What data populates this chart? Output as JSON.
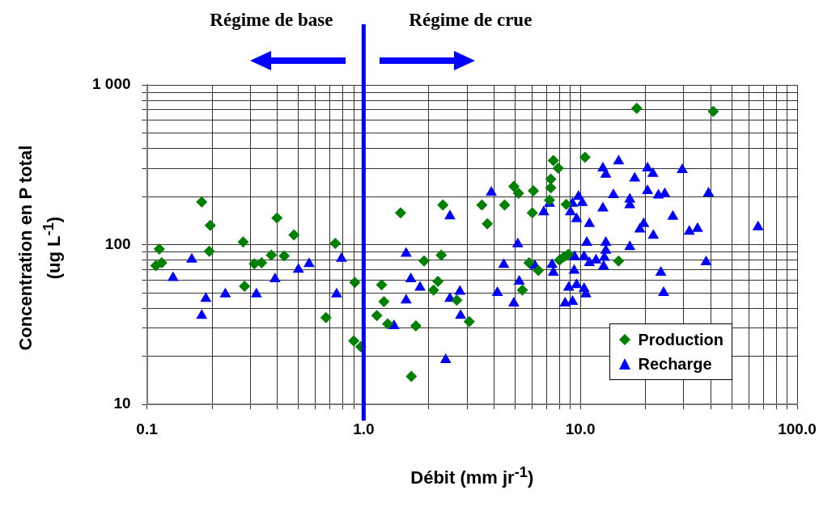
{
  "chart_data": {
    "type": "scatter",
    "xlabel": "Débit (mm jr$^{-1}$)",
    "ylabel": "Concentration en P total\n(ug L$^{-1}$)",
    "annotations": [
      "Régime de base",
      "Régime de crue"
    ],
    "log": "xy",
    "grid": true,
    "legend": "bottom right",
    "xlim": [
      0.1,
      100
    ],
    "ylim": [
      10,
      1000
    ],
    "xticks": [
      {
        "value": 0.1,
        "label": "0.1"
      },
      {
        "value": 0.2,
        "label": null
      },
      {
        "value": 0.3,
        "label": null
      },
      {
        "value": 0.4,
        "label": null
      },
      {
        "value": 0.5,
        "label": null
      },
      {
        "value": 0.6,
        "label": null
      },
      {
        "value": 0.7,
        "label": null
      },
      {
        "value": 0.8,
        "label": null
      },
      {
        "value": 0.9,
        "label": null
      },
      {
        "value": 1,
        "label": "1.0"
      },
      {
        "value": 2,
        "label": null
      },
      {
        "value": 3,
        "label": null
      },
      {
        "value": 4,
        "label": null
      },
      {
        "value": 5,
        "label": null
      },
      {
        "value": 6,
        "label": null
      },
      {
        "value": 7,
        "label": null
      },
      {
        "value": 8,
        "label": null
      },
      {
        "value": 9,
        "label": null
      },
      {
        "value": 10,
        "label": "10.0"
      },
      {
        "value": 20,
        "label": null
      },
      {
        "value": 30,
        "label": null
      },
      {
        "value": 40,
        "label": null
      },
      {
        "value": 50,
        "label": null
      },
      {
        "value": 60,
        "label": null
      },
      {
        "value": 70,
        "label": null
      },
      {
        "value": 80,
        "label": null
      },
      {
        "value": 90,
        "label": null
      },
      {
        "value": 100,
        "label": "100.0"
      }
    ],
    "yticks": [
      10,
      {
        "value": 20,
        "label": null
      },
      {
        "value": 30,
        "label": null
      },
      {
        "value": 40,
        "label": null
      },
      {
        "value": 50,
        "label": null
      },
      {
        "value": 60,
        "label": null
      },
      {
        "value": 70,
        "label": null
      },
      {
        "value": 80,
        "label": null
      },
      {
        "value": 90,
        "label": null
      },
      100,
      {
        "value": 200,
        "label": null
      },
      {
        "value": 300,
        "label": null
      },
      {
        "value": 400,
        "label": null
      },
      {
        "value": 500,
        "label": null
      },
      {
        "value": 600,
        "label": null
      },
      {
        "value": 700,
        "label": null
      },
      {
        "value": 800,
        "label": null
      },
      {
        "value": 900,
        "label": null
      },
      {
        "value": 1000,
        "label": "1 000"
      }
    ],
    "ref_lines": [
      {
        "axis": "x",
        "value": 1,
        "color": "#0000ff"
      }
    ],
    "series": [
      {
        "name": "Production",
        "color": "#008000",
        "marker": "diamond",
        "x": [
          0.11,
          0.114,
          0.117,
          0.179,
          0.196,
          0.194,
          0.278,
          0.282,
          0.313,
          0.338,
          0.375,
          0.398,
          0.43,
          0.477,
          0.67,
          0.74,
          0.91,
          0.9,
          0.97,
          1.21,
          1.24,
          1.15,
          1.29,
          1.48,
          1.74,
          1.66,
          1.9,
          2.28,
          2.2,
          2.1,
          2.32,
          2.69,
          3.07,
          3.51,
          3.72,
          4.47,
          4.93,
          5.18,
          6.07,
          6.0,
          7.3,
          7.3,
          7.2,
          8.6,
          5.4,
          5.8,
          6.4,
          8.0,
          8.4,
          8.8,
          18.2,
          41,
          7.5,
          7.9,
          10.5,
          15
        ],
        "values": [
          74,
          94,
          77,
          185,
          132,
          91,
          104,
          55,
          76,
          77,
          86,
          147,
          85,
          115,
          35,
          102,
          58,
          25,
          23,
          56,
          44,
          36,
          32,
          158,
          31,
          15,
          79,
          86,
          59,
          52,
          177,
          45,
          33,
          177,
          135,
          177,
          232,
          210,
          217,
          158,
          257,
          227,
          190,
          179,
          52,
          77,
          69,
          80,
          84,
          87,
          714,
          682,
          336,
          301,
          352,
          79
        ]
      },
      {
        "name": "Recharge",
        "color": "#0000ff",
        "marker": "triangle",
        "x": [
          0.161,
          0.132,
          0.187,
          0.179,
          0.23,
          0.32,
          0.39,
          0.5,
          0.56,
          0.75,
          0.79,
          1.57,
          1.65,
          1.82,
          1.57,
          1.38,
          2.5,
          2.5,
          2.78,
          2.8,
          2.39,
          3.88,
          4.14,
          4.43,
          5.14,
          5.22,
          4.93,
          6.16,
          6.77,
          7.2,
          7.4,
          7.5,
          9.36,
          8.83,
          8.5,
          9.2,
          9.6,
          9.2,
          9.8,
          10.2,
          9.0,
          9.6,
          11.0,
          12.7,
          13.1,
          15.0,
          17.8,
          20.4,
          21.6,
          29.5,
          14.2,
          16.9,
          16.9,
          12.7,
          20.4,
          22.9,
          24.5,
          39,
          26.7,
          19.6,
          18.8,
          21.7,
          31.8,
          34.7,
          66,
          38,
          23.5,
          24.2,
          16.9,
          10.7,
          13.1,
          13.1,
          12.9,
          12.8,
          11.8,
          11.0,
          10.4,
          9.4,
          10.4,
          10.6
        ],
        "values": [
          81,
          62,
          46,
          36,
          49,
          49,
          61,
          70,
          76,
          49,
          82,
          88,
          61,
          54,
          45,
          31,
          151,
          46,
          51,
          36,
          19,
          212,
          50,
          75,
          101,
          59,
          43,
          74,
          160,
          181,
          75,
          67,
          69,
          54,
          43,
          44,
          56,
          181,
          200,
          183,
          160,
          145,
          135,
          301,
          275,
          333,
          260,
          301,
          278,
          294,
          205,
          192,
          177,
          169,
          217,
          204,
          208,
          210,
          150,
          135,
          125,
          114,
          121,
          126,
          129,
          78,
          67,
          50,
          97,
          103,
          103,
          92,
          83,
          73,
          80,
          77,
          84,
          84,
          53,
          49
        ]
      }
    ]
  }
}
